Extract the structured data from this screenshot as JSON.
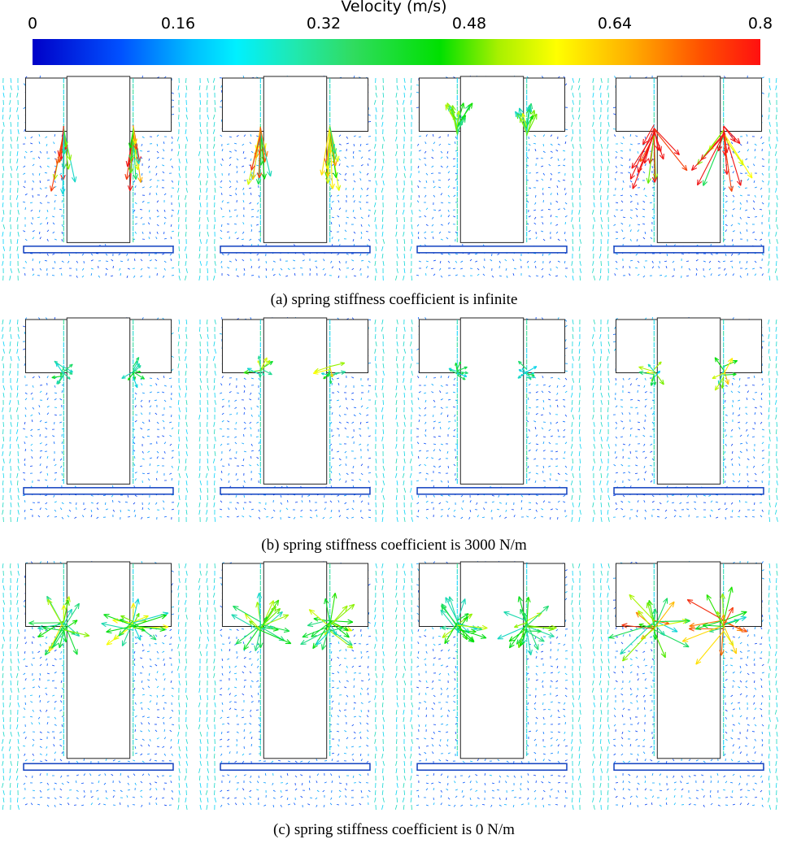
{
  "colorbar": {
    "title": "Velocity (m/s)",
    "ticks": [
      "0",
      "0.16",
      "0.32",
      "0.48",
      "0.64",
      "0.8"
    ],
    "range": [
      0,
      0.8
    ]
  },
  "rows": [
    {
      "caption": "(a) spring stiffness coefficient is infinite",
      "panels": [
        {
          "intensity": 0.8,
          "pattern": "down-jets"
        },
        {
          "intensity": 0.7,
          "pattern": "down-jets"
        },
        {
          "intensity": 0.5,
          "pattern": "up-fans"
        },
        {
          "intensity": 0.9,
          "pattern": "cross-jets"
        }
      ]
    },
    {
      "caption": "(b) spring stiffness coefficient is 3000 N/m",
      "panels": [
        {
          "intensity": 0.35,
          "pattern": "small-fans"
        },
        {
          "intensity": 0.55,
          "pattern": "small-fans"
        },
        {
          "intensity": 0.3,
          "pattern": "small-fans"
        },
        {
          "intensity": 0.6,
          "pattern": "small-fans"
        }
      ]
    },
    {
      "caption": "(c) spring stiffness coefficient is 0 N/m",
      "panels": [
        {
          "intensity": 0.5,
          "pattern": "big-fans"
        },
        {
          "intensity": 0.45,
          "pattern": "big-fans"
        },
        {
          "intensity": 0.45,
          "pattern": "big-fans"
        },
        {
          "intensity": 0.75,
          "pattern": "big-fans"
        }
      ]
    }
  ]
}
